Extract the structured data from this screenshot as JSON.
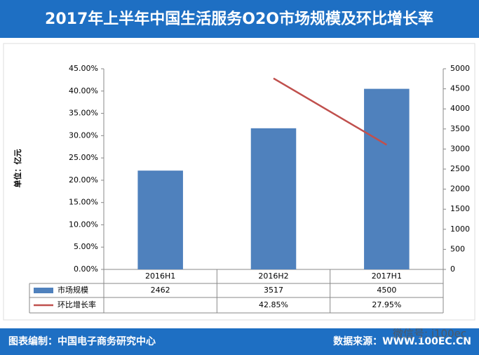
{
  "chart_data": {
    "type": "bar",
    "title": "2017年上半年中国生活服务O2O市场规模及环比增长率",
    "y_label": "单位：亿元",
    "categories": [
      "2016H1",
      "2016H2",
      "2017H1"
    ],
    "series": [
      {
        "name": "市场规模",
        "type": "bar",
        "axis": "y2",
        "color": "#4f81bd",
        "values": [
          2462,
          3517,
          4500
        ]
      },
      {
        "name": "环比增长率",
        "type": "line",
        "axis": "y",
        "color": "#c0504d",
        "values": [
          null,
          42.85,
          27.95
        ],
        "value_labels": [
          null,
          "42.85%",
          "27.95%"
        ]
      }
    ],
    "ylim": [
      0,
      45
    ],
    "yticks": [
      {
        "value": 0,
        "label": "0.00%"
      },
      {
        "value": 5,
        "label": "5.00%"
      },
      {
        "value": 10,
        "label": "10.00%"
      },
      {
        "value": 15,
        "label": "15.00%"
      },
      {
        "value": 20,
        "label": "20.00%"
      },
      {
        "value": 25,
        "label": "25.00%"
      },
      {
        "value": 30,
        "label": "30.00%"
      },
      {
        "value": 35,
        "label": "35.00%"
      },
      {
        "value": 40,
        "label": "40.00%"
      },
      {
        "value": 45,
        "label": "45.00%"
      }
    ],
    "y2lim": [
      0,
      5000
    ],
    "y2ticks": [
      0,
      500,
      1000,
      1500,
      2000,
      2500,
      3000,
      3500,
      4000,
      4500,
      5000
    ],
    "grid": false,
    "footer_left": "图表编制：中国电子商务研究中心",
    "footer_right": "数据来源：WWW.100EC.CN",
    "watermark": "微信号: i100ec"
  }
}
